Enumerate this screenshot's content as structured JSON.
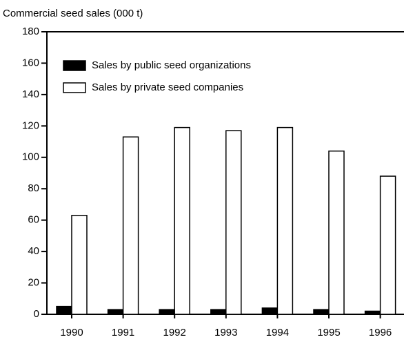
{
  "chart_data": {
    "type": "bar",
    "y_label": "Commercial seed sales (000 t)",
    "categories": [
      "1990",
      "1991",
      "1992",
      "1993",
      "1994",
      "1995",
      "1996"
    ],
    "series": [
      {
        "name": "Sales by public seed organizations",
        "color": "#000000",
        "values": [
          5,
          3,
          3,
          3,
          4,
          3,
          2
        ]
      },
      {
        "name": "Sales by private seed companies",
        "color": "#ffffff",
        "values": [
          63,
          113,
          119,
          117,
          119,
          104,
          88
        ]
      }
    ],
    "ylim": [
      0,
      180
    ],
    "yticks": [
      0,
      20,
      40,
      60,
      80,
      100,
      120,
      140,
      160,
      180
    ],
    "legend": "upper left"
  }
}
